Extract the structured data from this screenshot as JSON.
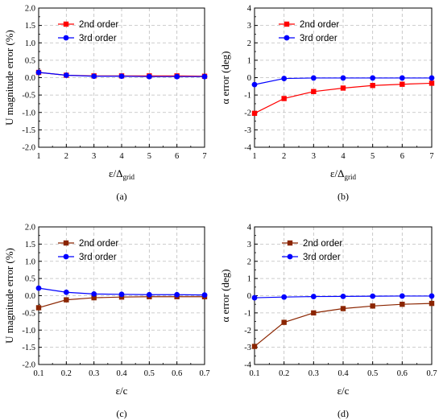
{
  "chart_data": [
    {
      "type": "line",
      "panel_label": "(a)",
      "xlabel": "ε/Δ",
      "xlabel_sub": "grid",
      "ylabel": "U magnitude error (%)",
      "x": [
        1,
        2,
        3,
        4,
        5,
        6,
        7
      ],
      "x_ticks": [
        "1",
        "2",
        "3",
        "4",
        "5",
        "6",
        "7"
      ],
      "xlim": [
        1,
        7
      ],
      "ylim": [
        -2.0,
        2.0
      ],
      "y_ticks": [
        "-2.0",
        "-1.5",
        "-1.0",
        "-0.5",
        "0.0",
        "0.5",
        "1.0",
        "1.5",
        "2.0"
      ],
      "grid": true,
      "legend_position": "top-left",
      "series": [
        {
          "name": "2nd order",
          "color": "#ff0000",
          "marker": "square",
          "values": [
            0.15,
            0.07,
            0.05,
            0.05,
            0.05,
            0.05,
            0.04
          ]
        },
        {
          "name": "3rd order",
          "color": "#0000ff",
          "marker": "circle",
          "values": [
            0.15,
            0.07,
            0.04,
            0.04,
            0.03,
            0.03,
            0.03
          ]
        }
      ]
    },
    {
      "type": "line",
      "panel_label": "(b)",
      "xlabel": "ε/Δ",
      "xlabel_sub": "grid",
      "ylabel": "α error (deg)",
      "x": [
        1,
        2,
        3,
        4,
        5,
        6,
        7
      ],
      "x_ticks": [
        "1",
        "2",
        "3",
        "4",
        "5",
        "6",
        "7"
      ],
      "xlim": [
        1,
        7
      ],
      "ylim": [
        -4,
        4
      ],
      "y_ticks": [
        "-4",
        "-3",
        "-2",
        "-1",
        "0",
        "1",
        "2",
        "3",
        "4"
      ],
      "grid": true,
      "legend_position": "top-right",
      "series": [
        {
          "name": "2nd order",
          "color": "#ff0000",
          "marker": "square",
          "values": [
            -2.05,
            -1.2,
            -0.8,
            -0.6,
            -0.45,
            -0.38,
            -0.32
          ]
        },
        {
          "name": "3rd order",
          "color": "#0000ff",
          "marker": "circle",
          "values": [
            -0.4,
            -0.05,
            -0.02,
            -0.02,
            -0.02,
            -0.02,
            -0.02
          ]
        }
      ]
    },
    {
      "type": "line",
      "panel_label": "(c)",
      "xlabel": "ε/c",
      "xlabel_sub": "",
      "ylabel": "U magnitude error (%)",
      "x": [
        0.1,
        0.2,
        0.3,
        0.4,
        0.5,
        0.6,
        0.7
      ],
      "x_ticks": [
        "0.1",
        "0.2",
        "0.3",
        "0.4",
        "0.5",
        "0.6",
        "0.7"
      ],
      "xlim": [
        0.1,
        0.7
      ],
      "ylim": [
        -2.0,
        2.0
      ],
      "y_ticks": [
        "-2.0",
        "-1.5",
        "-1.0",
        "-0.5",
        "0.0",
        "0.5",
        "1.0",
        "1.5",
        "2.0"
      ],
      "grid": true,
      "legend_position": "top-right",
      "series": [
        {
          "name": "2nd order",
          "color": "#8b2500",
          "marker": "square",
          "values": [
            -0.35,
            -0.12,
            -0.06,
            -0.04,
            -0.03,
            -0.03,
            -0.03
          ]
        },
        {
          "name": "3rd order",
          "color": "#0000ff",
          "marker": "circle",
          "values": [
            0.22,
            0.1,
            0.05,
            0.04,
            0.03,
            0.03,
            0.02
          ]
        }
      ]
    },
    {
      "type": "line",
      "panel_label": "(d)",
      "xlabel": "ε/c",
      "xlabel_sub": "",
      "ylabel": "α error (deg)",
      "x": [
        0.1,
        0.2,
        0.3,
        0.4,
        0.5,
        0.6,
        0.7
      ],
      "x_ticks": [
        "0.1",
        "0.2",
        "0.3",
        "0.4",
        "0.5",
        "0.6",
        "0.7"
      ],
      "xlim": [
        0.1,
        0.7
      ],
      "ylim": [
        -4,
        4
      ],
      "y_ticks": [
        "-4",
        "-3",
        "-2",
        "-1",
        "0",
        "1",
        "2",
        "3",
        "4"
      ],
      "grid": true,
      "legend_position": "top-right",
      "series": [
        {
          "name": "2nd order",
          "color": "#8b2500",
          "marker": "square",
          "values": [
            -2.95,
            -1.55,
            -1.0,
            -0.75,
            -0.6,
            -0.5,
            -0.45
          ]
        },
        {
          "name": "3rd order",
          "color": "#0000ff",
          "marker": "circle",
          "values": [
            -0.12,
            -0.08,
            -0.05,
            -0.04,
            -0.03,
            -0.02,
            -0.02
          ]
        }
      ]
    }
  ]
}
